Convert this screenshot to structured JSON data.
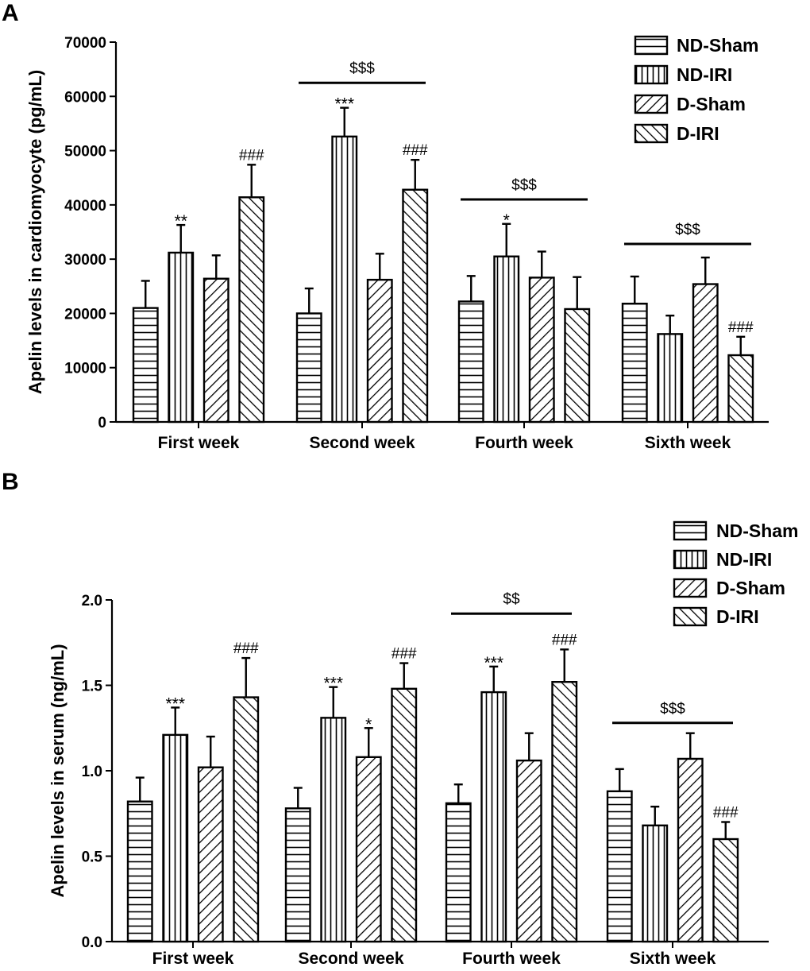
{
  "chart_data": [
    {
      "panel": "A",
      "type": "bar",
      "title": "",
      "xlabel": "",
      "ylabel": "Apelin levels in cardiomyocyte (pg/mL)",
      "ylim": [
        0,
        70000
      ],
      "yticks": [
        "0",
        "10000",
        "20000",
        "30000",
        "40000",
        "50000",
        "60000",
        "70000"
      ],
      "categories": [
        "First week",
        "Second week",
        "Fourth week",
        "Sixth week"
      ],
      "series": [
        {
          "name": "ND-Sham",
          "pattern": "horizontal",
          "values": [
            21000,
            20000,
            22200,
            21800
          ],
          "errors": [
            5000,
            4600,
            4700,
            5000
          ]
        },
        {
          "name": "ND-IRI",
          "pattern": "vertical",
          "values": [
            31200,
            52600,
            30500,
            16200
          ],
          "errors": [
            5100,
            5300,
            6000,
            3400
          ]
        },
        {
          "name": "D-Sham",
          "pattern": "diagonal-up",
          "values": [
            26400,
            26200,
            26600,
            25400
          ],
          "errors": [
            4300,
            4800,
            4800,
            4900
          ]
        },
        {
          "name": "D-IRI",
          "pattern": "diagonal-down",
          "values": [
            41400,
            42800,
            20800,
            12300
          ],
          "errors": [
            6000,
            5500,
            5900,
            3400
          ]
        }
      ],
      "annotations": [
        {
          "text": "**",
          "group": 0,
          "series": 1
        },
        {
          "text": "###",
          "group": 0,
          "series": 3
        },
        {
          "text": "***",
          "group": 1,
          "series": 1
        },
        {
          "text": "###",
          "group": 1,
          "series": 3
        },
        {
          "text": "*",
          "group": 2,
          "series": 1
        },
        {
          "text": "###",
          "group": 3,
          "series": 3
        }
      ],
      "brackets": [
        {
          "text": "$$$",
          "group": 1,
          "value": 62500
        },
        {
          "text": "$$$",
          "group": 2,
          "value": 41000
        },
        {
          "text": "$$$",
          "group": 3,
          "value": 32800
        }
      ],
      "legend_position": "top-right"
    },
    {
      "panel": "B",
      "type": "bar",
      "title": "",
      "xlabel": "",
      "ylabel": "Apelin levels in serum (ng/mL)",
      "ylim": [
        0,
        2.0
      ],
      "yticks": [
        "0.0",
        "0.5",
        "1.0",
        "1.5",
        "2.0"
      ],
      "categories": [
        "First week",
        "Second week",
        "Fourth week",
        "Sixth week"
      ],
      "series": [
        {
          "name": "ND-Sham",
          "pattern": "horizontal",
          "values": [
            0.82,
            0.78,
            0.81,
            0.88
          ],
          "errors": [
            0.14,
            0.12,
            0.11,
            0.13
          ]
        },
        {
          "name": "ND-IRI",
          "pattern": "vertical",
          "values": [
            1.21,
            1.31,
            1.46,
            0.68
          ],
          "errors": [
            0.16,
            0.18,
            0.15,
            0.11
          ]
        },
        {
          "name": "D-Sham",
          "pattern": "diagonal-up",
          "values": [
            1.02,
            1.08,
            1.06,
            1.07
          ],
          "errors": [
            0.18,
            0.17,
            0.16,
            0.15
          ]
        },
        {
          "name": "D-IRI",
          "pattern": "diagonal-down",
          "values": [
            1.43,
            1.48,
            1.52,
            0.6
          ],
          "errors": [
            0.23,
            0.15,
            0.19,
            0.1
          ]
        }
      ],
      "annotations": [
        {
          "text": "***",
          "group": 0,
          "series": 1
        },
        {
          "text": "###",
          "group": 0,
          "series": 3
        },
        {
          "text": "***",
          "group": 1,
          "series": 1
        },
        {
          "text": "*",
          "group": 1,
          "series": 2
        },
        {
          "text": "###",
          "group": 1,
          "series": 3
        },
        {
          "text": "***",
          "group": 2,
          "series": 1
        },
        {
          "text": "###",
          "group": 2,
          "series": 3
        },
        {
          "text": "###",
          "group": 3,
          "series": 3
        }
      ],
      "brackets": [
        {
          "text": "$$",
          "group": 2,
          "value": 1.92
        },
        {
          "text": "$$$",
          "group": 3,
          "value": 1.28
        }
      ],
      "legend_position": "top-right"
    }
  ]
}
